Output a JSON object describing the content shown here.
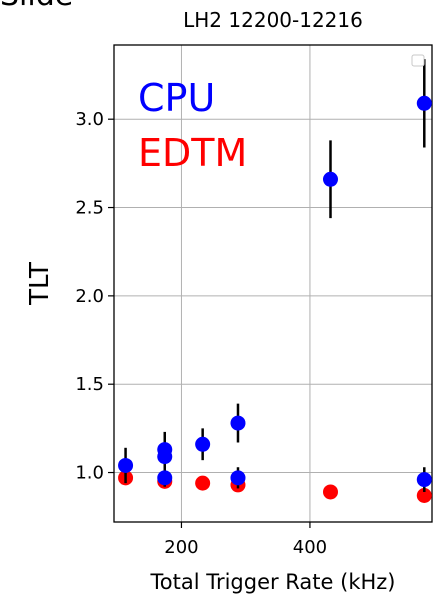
{
  "page": {
    "clipped_text": "Slide"
  },
  "chart_data": {
    "type": "scatter",
    "title": "LH2 12200-12216",
    "xlabel": "Total Trigger Rate (kHz)",
    "ylabel": "TLT",
    "xlim": [
      95,
      590
    ],
    "ylim": [
      0.72,
      3.42
    ],
    "xticks": [
      200,
      400
    ],
    "yticks": [
      1.0,
      1.5,
      2.0,
      2.5,
      3.0
    ],
    "ytick_labels": [
      "1.0",
      "1.5",
      "2.0",
      "2.5",
      "3.0"
    ],
    "grid": true,
    "legend": "top-right",
    "series": [
      {
        "name": "CPU",
        "color": "#0000ff",
        "label_color": "#0000ff",
        "points": [
          {
            "x": 113,
            "y": 1.04,
            "err": 0.1
          },
          {
            "x": 174,
            "y": 1.13,
            "err": 0.1
          },
          {
            "x": 174,
            "y": 1.09,
            "err": 0.08
          },
          {
            "x": 174,
            "y": 0.97,
            "err": 0.05
          },
          {
            "x": 233,
            "y": 1.16,
            "err": 0.09
          },
          {
            "x": 288,
            "y": 1.28,
            "err": 0.11
          },
          {
            "x": 288,
            "y": 0.97,
            "err": 0.06
          },
          {
            "x": 432,
            "y": 2.66,
            "err": 0.22
          },
          {
            "x": 578,
            "y": 3.09,
            "err": 0.25
          },
          {
            "x": 578,
            "y": 0.96,
            "err": 0.07
          }
        ]
      },
      {
        "name": "EDTM",
        "color": "#ff0000",
        "label_color": "#ff0000",
        "points": [
          {
            "x": 113,
            "y": 0.97
          },
          {
            "x": 174,
            "y": 0.95
          },
          {
            "x": 233,
            "y": 0.94
          },
          {
            "x": 288,
            "y": 0.93
          },
          {
            "x": 432,
            "y": 0.89
          },
          {
            "x": 578,
            "y": 0.87
          }
        ]
      }
    ],
    "errorbar_color": "#000000"
  }
}
